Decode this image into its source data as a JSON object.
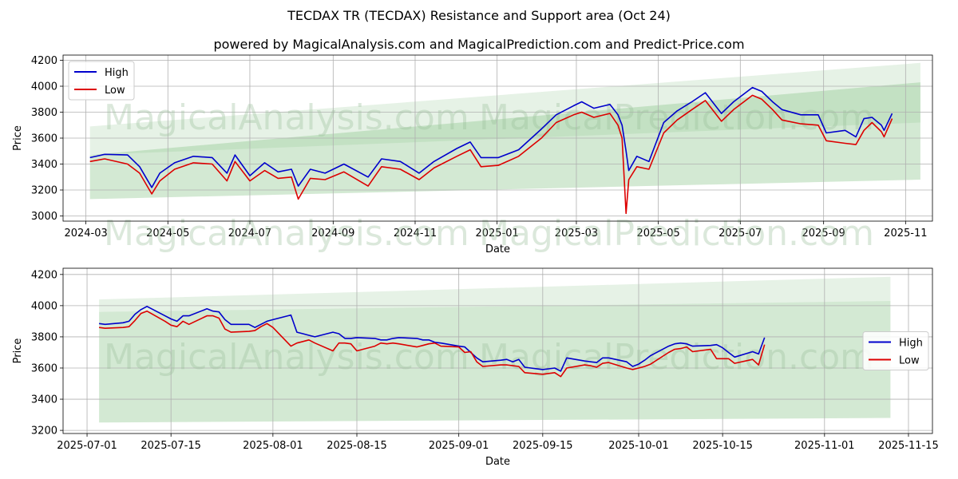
{
  "title": "TECDAX TR (TECDAX) Resistance and Support area (Oct 24)",
  "subtitle": "powered by MagicalAnalysis.com and MagicalPrediction.com and Predict-Price.com",
  "watermarks": [
    "MagicalAnalysis.com",
    "MagicalPrediction.com"
  ],
  "colors": {
    "high": "#0000cc",
    "low": "#dd0000",
    "band": "#8cc68c",
    "grid": "#b0b0b0"
  },
  "chart_data": [
    {
      "type": "line",
      "panel": "top",
      "xlabel": "Date",
      "ylabel": "Price",
      "ylim": [
        2960,
        4240
      ],
      "xlim": [
        "2024-02-13",
        "2025-11-21"
      ],
      "yticks": [
        3000,
        3200,
        3400,
        3600,
        3800,
        4000,
        4200
      ],
      "xticks": [
        "2024-03",
        "2024-05",
        "2024-07",
        "2024-09",
        "2024-11",
        "2025-01",
        "2025-03",
        "2025-05",
        "2025-07",
        "2025-09",
        "2025-11"
      ],
      "grid": true,
      "legend": {
        "position": "top-left",
        "entries": [
          "High",
          "Low"
        ]
      },
      "bands": [
        {
          "x": [
            "2024-03-04",
            "2025-11-12"
          ],
          "upper": [
            3690,
            4180
          ],
          "lower": [
            3470,
            3720
          ]
        },
        {
          "x": [
            "2024-03-04",
            "2025-11-12"
          ],
          "upper": [
            3470,
            4030
          ],
          "lower": [
            3130,
            3280
          ]
        }
      ],
      "series": [
        {
          "name": "High",
          "x": [
            "2024-03-04",
            "2024-03-15",
            "2024-04-01",
            "2024-04-10",
            "2024-04-19",
            "2024-04-25",
            "2024-05-06",
            "2024-05-20",
            "2024-06-03",
            "2024-06-14",
            "2024-06-20",
            "2024-07-01",
            "2024-07-12",
            "2024-07-22",
            "2024-08-01",
            "2024-08-06",
            "2024-08-15",
            "2024-08-26",
            "2024-09-09",
            "2024-09-27",
            "2024-10-07",
            "2024-10-21",
            "2024-11-04",
            "2024-11-15",
            "2024-12-02",
            "2024-12-12",
            "2024-12-20",
            "2025-01-02",
            "2025-01-17",
            "2025-02-03",
            "2025-02-14",
            "2025-02-27",
            "2025-03-05",
            "2025-03-14",
            "2025-03-26",
            "2025-04-01",
            "2025-04-04",
            "2025-04-07",
            "2025-04-09",
            "2025-04-15",
            "2025-04-24",
            "2025-05-05",
            "2025-05-15",
            "2025-05-26",
            "2025-06-05",
            "2025-06-17",
            "2025-06-26",
            "2025-07-10",
            "2025-07-17",
            "2025-07-25",
            "2025-08-01",
            "2025-08-15",
            "2025-08-28",
            "2025-09-03",
            "2025-09-17",
            "2025-09-25",
            "2025-10-01",
            "2025-10-07",
            "2025-10-14",
            "2025-10-16",
            "2025-10-22"
          ],
          "values": [
            3450,
            3475,
            3470,
            3380,
            3220,
            3330,
            3410,
            3460,
            3450,
            3330,
            3470,
            3310,
            3410,
            3340,
            3360,
            3230,
            3360,
            3330,
            3400,
            3300,
            3440,
            3420,
            3330,
            3420,
            3520,
            3570,
            3450,
            3450,
            3510,
            3670,
            3780,
            3850,
            3880,
            3830,
            3860,
            3780,
            3700,
            3500,
            3350,
            3460,
            3420,
            3720,
            3810,
            3880,
            3950,
            3790,
            3880,
            3990,
            3960,
            3880,
            3820,
            3780,
            3780,
            3640,
            3660,
            3610,
            3750,
            3760,
            3700,
            3660,
            3790
          ]
        },
        {
          "name": "Low",
          "x": [
            "2024-03-04",
            "2024-03-15",
            "2024-04-01",
            "2024-04-10",
            "2024-04-19",
            "2024-04-25",
            "2024-05-06",
            "2024-05-20",
            "2024-06-03",
            "2024-06-14",
            "2024-06-20",
            "2024-07-01",
            "2024-07-12",
            "2024-07-22",
            "2024-08-01",
            "2024-08-06",
            "2024-08-15",
            "2024-08-26",
            "2024-09-09",
            "2024-09-27",
            "2024-10-07",
            "2024-10-21",
            "2024-11-04",
            "2024-11-15",
            "2024-12-02",
            "2024-12-12",
            "2024-12-20",
            "2025-01-02",
            "2025-01-17",
            "2025-02-03",
            "2025-02-14",
            "2025-02-27",
            "2025-03-05",
            "2025-03-14",
            "2025-03-26",
            "2025-04-01",
            "2025-04-04",
            "2025-04-07",
            "2025-04-09",
            "2025-04-15",
            "2025-04-24",
            "2025-05-05",
            "2025-05-15",
            "2025-05-26",
            "2025-06-05",
            "2025-06-17",
            "2025-06-26",
            "2025-07-10",
            "2025-07-17",
            "2025-07-25",
            "2025-08-01",
            "2025-08-15",
            "2025-08-28",
            "2025-09-03",
            "2025-09-17",
            "2025-09-25",
            "2025-10-01",
            "2025-10-07",
            "2025-10-14",
            "2025-10-16",
            "2025-10-22"
          ],
          "values": [
            3420,
            3440,
            3400,
            3330,
            3170,
            3270,
            3360,
            3410,
            3400,
            3270,
            3420,
            3270,
            3350,
            3290,
            3300,
            3130,
            3290,
            3280,
            3340,
            3230,
            3380,
            3360,
            3280,
            3370,
            3460,
            3510,
            3380,
            3390,
            3460,
            3600,
            3720,
            3780,
            3800,
            3760,
            3790,
            3700,
            3600,
            3020,
            3280,
            3380,
            3360,
            3640,
            3740,
            3820,
            3890,
            3730,
            3820,
            3930,
            3900,
            3820,
            3740,
            3710,
            3700,
            3580,
            3560,
            3550,
            3660,
            3720,
            3650,
            3610,
            3750
          ]
        }
      ]
    },
    {
      "type": "line",
      "panel": "bottom",
      "xlabel": "Date",
      "ylabel": "Price",
      "ylim": [
        3180,
        4240
      ],
      "xlim": [
        "2025-06-27",
        "2025-11-19"
      ],
      "yticks": [
        3200,
        3400,
        3600,
        3800,
        4000,
        4200
      ],
      "xticks": [
        "2025-07-01",
        "2025-07-15",
        "2025-08-01",
        "2025-08-15",
        "2025-09-01",
        "2025-09-15",
        "2025-10-01",
        "2025-10-15",
        "2025-11-01",
        "2025-11-15"
      ],
      "grid": true,
      "legend": {
        "position": "center-right",
        "entries": [
          "High",
          "Low"
        ]
      },
      "bands": [
        {
          "x": [
            "2025-07-03",
            "2025-11-12"
          ],
          "upper": [
            4040,
            4185
          ],
          "lower": [
            3960,
            4030
          ]
        },
        {
          "x": [
            "2025-07-03",
            "2025-11-12"
          ],
          "upper": [
            3960,
            4030
          ],
          "lower": [
            3250,
            3280
          ]
        }
      ],
      "series": [
        {
          "name": "High",
          "x": [
            "2025-07-03",
            "2025-07-04",
            "2025-07-07",
            "2025-07-08",
            "2025-07-09",
            "2025-07-10",
            "2025-07-11",
            "2025-07-14",
            "2025-07-15",
            "2025-07-16",
            "2025-07-17",
            "2025-07-18",
            "2025-07-21",
            "2025-07-22",
            "2025-07-23",
            "2025-07-24",
            "2025-07-25",
            "2025-07-28",
            "2025-07-29",
            "2025-07-30",
            "2025-07-31",
            "2025-08-01",
            "2025-08-04",
            "2025-08-05",
            "2025-08-06",
            "2025-08-07",
            "2025-08-08",
            "2025-08-11",
            "2025-08-12",
            "2025-08-13",
            "2025-08-14",
            "2025-08-15",
            "2025-08-18",
            "2025-08-19",
            "2025-08-20",
            "2025-08-21",
            "2025-08-22",
            "2025-08-25",
            "2025-08-26",
            "2025-08-27",
            "2025-08-28",
            "2025-08-29",
            "2025-09-01",
            "2025-09-02",
            "2025-09-03",
            "2025-09-04",
            "2025-09-05",
            "2025-09-08",
            "2025-09-09",
            "2025-09-10",
            "2025-09-11",
            "2025-09-12",
            "2025-09-15",
            "2025-09-16",
            "2025-09-17",
            "2025-09-18",
            "2025-09-19",
            "2025-09-22",
            "2025-09-23",
            "2025-09-24",
            "2025-09-25",
            "2025-09-26",
            "2025-09-29",
            "2025-09-30",
            "2025-10-01",
            "2025-10-02",
            "2025-10-03",
            "2025-10-06",
            "2025-10-07",
            "2025-10-08",
            "2025-10-09",
            "2025-10-10",
            "2025-10-13",
            "2025-10-14",
            "2025-10-15",
            "2025-10-16",
            "2025-10-17",
            "2025-10-20",
            "2025-10-21",
            "2025-10-22"
          ],
          "values": [
            3885,
            3880,
            3890,
            3900,
            3945,
            3975,
            3995,
            3935,
            3915,
            3900,
            3935,
            3935,
            3980,
            3965,
            3960,
            3910,
            3880,
            3880,
            3860,
            3880,
            3900,
            3910,
            3940,
            3830,
            3820,
            3810,
            3800,
            3830,
            3820,
            3790,
            3790,
            3795,
            3790,
            3780,
            3780,
            3790,
            3795,
            3790,
            3780,
            3780,
            3765,
            3760,
            3740,
            3735,
            3700,
            3665,
            3640,
            3650,
            3655,
            3640,
            3655,
            3605,
            3590,
            3595,
            3600,
            3580,
            3665,
            3645,
            3640,
            3635,
            3665,
            3665,
            3640,
            3610,
            3625,
            3650,
            3680,
            3740,
            3755,
            3760,
            3755,
            3740,
            3745,
            3750,
            3730,
            3700,
            3670,
            3705,
            3690,
            3795
          ]
        },
        {
          "name": "Low",
          "x": [
            "2025-07-03",
            "2025-07-04",
            "2025-07-07",
            "2025-07-08",
            "2025-07-09",
            "2025-07-10",
            "2025-07-11",
            "2025-07-14",
            "2025-07-15",
            "2025-07-16",
            "2025-07-17",
            "2025-07-18",
            "2025-07-21",
            "2025-07-22",
            "2025-07-23",
            "2025-07-24",
            "2025-07-25",
            "2025-07-28",
            "2025-07-29",
            "2025-07-30",
            "2025-07-31",
            "2025-08-01",
            "2025-08-04",
            "2025-08-05",
            "2025-08-06",
            "2025-08-07",
            "2025-08-08",
            "2025-08-11",
            "2025-08-12",
            "2025-08-13",
            "2025-08-14",
            "2025-08-15",
            "2025-08-18",
            "2025-08-19",
            "2025-08-20",
            "2025-08-21",
            "2025-08-22",
            "2025-08-25",
            "2025-08-26",
            "2025-08-27",
            "2025-08-28",
            "2025-08-29",
            "2025-09-01",
            "2025-09-02",
            "2025-09-03",
            "2025-09-04",
            "2025-09-05",
            "2025-09-08",
            "2025-09-09",
            "2025-09-10",
            "2025-09-11",
            "2025-09-12",
            "2025-09-15",
            "2025-09-16",
            "2025-09-17",
            "2025-09-18",
            "2025-09-19",
            "2025-09-22",
            "2025-09-23",
            "2025-09-24",
            "2025-09-25",
            "2025-09-26",
            "2025-09-29",
            "2025-09-30",
            "2025-10-01",
            "2025-10-02",
            "2025-10-03",
            "2025-10-06",
            "2025-10-07",
            "2025-10-08",
            "2025-10-09",
            "2025-10-10",
            "2025-10-13",
            "2025-10-14",
            "2025-10-15",
            "2025-10-16",
            "2025-10-17",
            "2025-10-20",
            "2025-10-21",
            "2025-10-22"
          ],
          "values": [
            3860,
            3855,
            3860,
            3865,
            3905,
            3950,
            3965,
            3900,
            3875,
            3865,
            3900,
            3880,
            3935,
            3935,
            3920,
            3850,
            3830,
            3835,
            3840,
            3865,
            3885,
            3860,
            3740,
            3760,
            3770,
            3780,
            3760,
            3710,
            3760,
            3760,
            3755,
            3710,
            3740,
            3760,
            3755,
            3760,
            3755,
            3735,
            3745,
            3755,
            3760,
            3740,
            3735,
            3700,
            3705,
            3640,
            3610,
            3620,
            3620,
            3615,
            3610,
            3570,
            3560,
            3565,
            3570,
            3545,
            3600,
            3620,
            3615,
            3605,
            3630,
            3635,
            3600,
            3590,
            3600,
            3610,
            3625,
            3700,
            3720,
            3725,
            3735,
            3705,
            3720,
            3660,
            3660,
            3660,
            3630,
            3655,
            3620,
            3750
          ]
        }
      ]
    }
  ]
}
